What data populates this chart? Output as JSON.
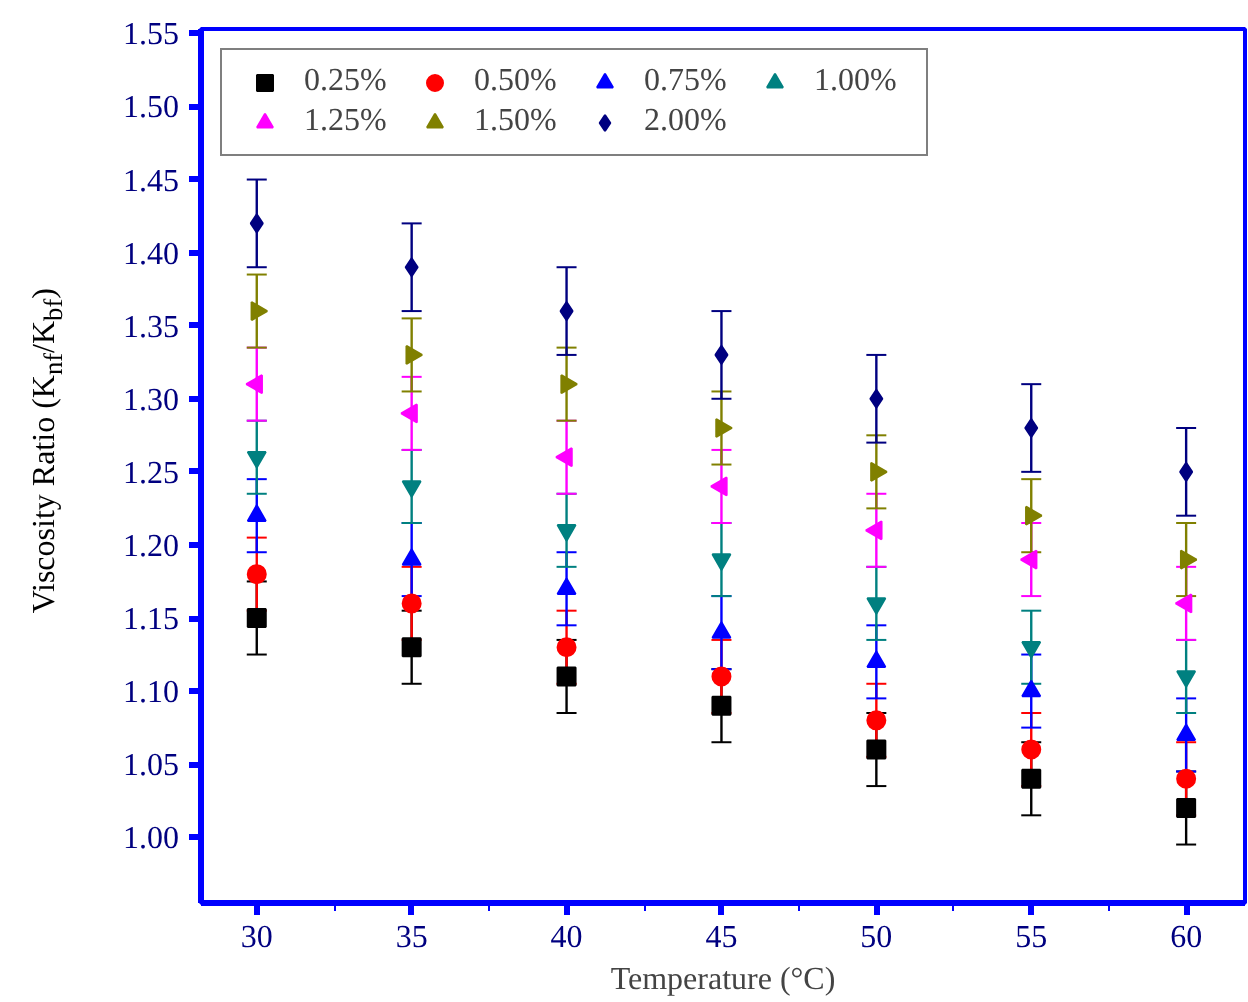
{
  "chart_data": {
    "type": "scatter",
    "xlabel": "Temperature (°C)",
    "ylabel": "Viscosity Ratio (K$_{nf}$/K$_{bf}$)",
    "x": [
      30,
      35,
      40,
      45,
      50,
      55,
      60
    ],
    "xlim": [
      28.2,
      61.9
    ],
    "xticks": [
      30,
      35,
      40,
      45,
      50,
      55,
      60
    ],
    "ylim": [
      0.955,
      1.553
    ],
    "yticks": [
      {
        "value": 1.0,
        "label": "1.00"
      },
      {
        "value": 1.05,
        "label": "1.05"
      },
      {
        "value": 1.1,
        "label": "1.10"
      },
      {
        "value": 1.15,
        "label": "1.15"
      },
      {
        "value": 1.2,
        "label": "1.20"
      },
      {
        "value": 1.25,
        "label": "1.25"
      },
      {
        "value": 1.3,
        "label": "1.30"
      },
      {
        "value": 1.35,
        "label": "1.35"
      },
      {
        "value": 1.4,
        "label": "1.40"
      },
      {
        "value": 1.45,
        "label": "1.45"
      },
      {
        "value": 1.5,
        "label": "1.50"
      },
      {
        "value": 1.55,
        "label": "1.55"
      }
    ],
    "grid": false,
    "legend": "top left",
    "series": [
      {
        "name": "0.25%",
        "color": "#000000",
        "marker": "square",
        "values": [
          1.15,
          1.13,
          1.11,
          1.09,
          1.06,
          1.04,
          1.02
        ],
        "errors": [
          0.025,
          0.025,
          0.025,
          0.025,
          0.025,
          0.025,
          0.025
        ]
      },
      {
        "name": "0.50%",
        "color": "#ff0000",
        "marker": "circle",
        "values": [
          1.18,
          1.16,
          1.13,
          1.11,
          1.08,
          1.06,
          1.04
        ],
        "errors": [
          0.025,
          0.025,
          0.025,
          0.025,
          0.025,
          0.025,
          0.025
        ]
      },
      {
        "name": "0.75%",
        "color": "#0000ff",
        "marker": "triangle",
        "values": [
          1.22,
          1.19,
          1.17,
          1.14,
          1.12,
          1.1,
          1.07
        ],
        "errors": [
          0.025,
          0.025,
          0.025,
          0.025,
          0.025,
          0.025,
          0.025
        ]
      },
      {
        "name": "1.00%",
        "color": "#008080",
        "marker": "triangle",
        "values": [
          1.26,
          1.24,
          1.21,
          1.19,
          1.16,
          1.13,
          1.11
        ],
        "errors": [
          0.025,
          0.025,
          0.025,
          0.025,
          0.025,
          0.025,
          0.025
        ]
      },
      {
        "name": "1.25%",
        "color": "#ff00ff",
        "marker": "triangle",
        "values": [
          1.31,
          1.29,
          1.26,
          1.24,
          1.21,
          1.19,
          1.16
        ],
        "errors": [
          0.025,
          0.025,
          0.025,
          0.025,
          0.025,
          0.025,
          0.025
        ]
      },
      {
        "name": "1.50%",
        "color": "#808000",
        "marker": "triangle",
        "values": [
          1.36,
          1.33,
          1.31,
          1.28,
          1.25,
          1.22,
          1.19
        ],
        "errors": [
          0.025,
          0.025,
          0.025,
          0.025,
          0.025,
          0.025,
          0.025
        ]
      },
      {
        "name": "2.00%",
        "color": "#000080",
        "marker": "diamond",
        "values": [
          1.42,
          1.39,
          1.36,
          1.33,
          1.3,
          1.28,
          1.25
        ],
        "errors": [
          0.03,
          0.03,
          0.03,
          0.03,
          0.03,
          0.03,
          0.03
        ]
      }
    ]
  }
}
